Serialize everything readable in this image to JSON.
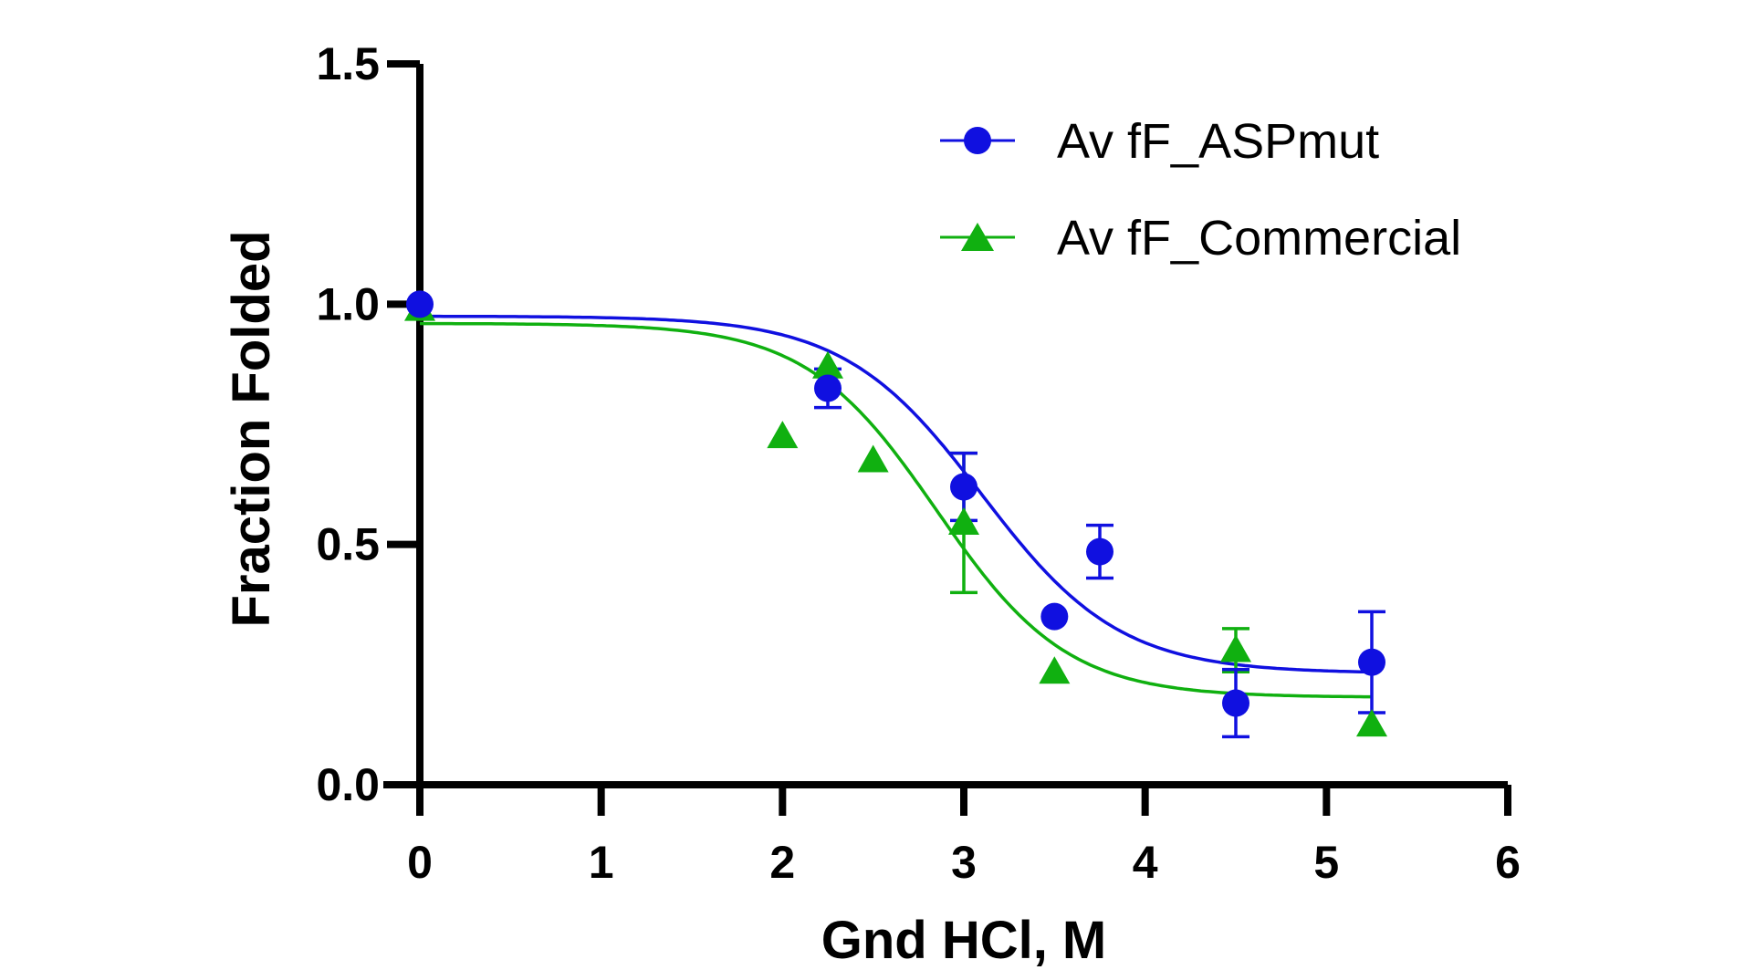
{
  "chart_data": {
    "type": "scatter",
    "title": "",
    "xlabel": "Gnd HCl, M",
    "ylabel": "Fraction Folded",
    "xlim": [
      0,
      6
    ],
    "ylim": [
      0,
      1.5
    ],
    "xticks": [
      "0",
      "1",
      "2",
      "3",
      "4",
      "5",
      "6"
    ],
    "yticks": [
      "0.0",
      "0.5",
      "1.0",
      "1.5"
    ],
    "legend_position": "top-right",
    "series": [
      {
        "name": "Av fF_ASPmut",
        "color": "#1010e0",
        "marker": "circle",
        "x": [
          0,
          2.25,
          3.0,
          3.5,
          3.75,
          4.5,
          5.25
        ],
        "y": [
          1.0,
          0.825,
          0.62,
          0.35,
          0.485,
          0.17,
          0.255
        ],
        "err": [
          0,
          0.04,
          0.07,
          0,
          0.055,
          0.07,
          0.105
        ],
        "fit": {
          "top": 0.975,
          "bottom": 0.232,
          "midpoint": 3.1,
          "slope": 0.38
        }
      },
      {
        "name": "Av fF_Commercial",
        "color": "#10b010",
        "marker": "triangle",
        "x": [
          0,
          2.0,
          2.25,
          2.5,
          3.0,
          3.5,
          4.5,
          5.25
        ],
        "y": [
          0.99,
          0.725,
          0.87,
          0.675,
          0.545,
          0.235,
          0.28,
          0.125
        ],
        "err": [
          0,
          0,
          0,
          0,
          0.145,
          0,
          0.045,
          0
        ],
        "fit": {
          "top": 0.96,
          "bottom": 0.182,
          "midpoint": 2.85,
          "slope": 0.36
        }
      }
    ]
  }
}
